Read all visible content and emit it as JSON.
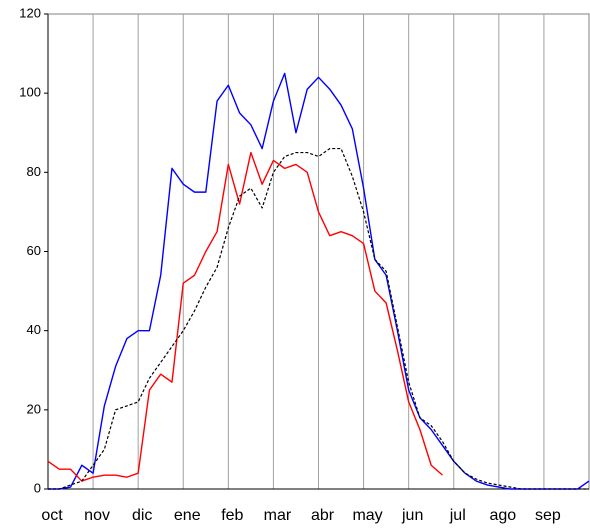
{
  "chart_data": {
    "type": "line",
    "x": [
      0,
      0.25,
      0.5,
      0.75,
      1,
      1.25,
      1.5,
      1.75,
      2,
      2.25,
      2.5,
      2.75,
      3,
      3.25,
      3.5,
      3.75,
      4,
      4.25,
      4.5,
      4.75,
      5,
      5.25,
      5.5,
      5.75,
      6,
      6.25,
      6.5,
      6.75,
      7,
      7.25,
      7.5,
      7.75,
      8,
      8.25,
      8.5,
      8.75,
      9,
      9.25,
      9.5,
      9.75,
      10,
      10.25,
      10.5,
      10.75,
      11,
      11.25,
      11.5,
      11.75,
      12
    ],
    "series": [
      {
        "color": "#0000ff",
        "dash": false,
        "values": [
          0,
          0,
          0.5,
          6,
          4,
          21,
          31,
          38,
          40,
          40,
          54,
          81,
          77,
          75,
          75,
          98,
          102,
          95,
          92,
          86,
          98,
          105,
          90,
          101,
          104,
          101,
          97,
          91,
          76,
          58,
          54,
          40,
          25,
          18,
          15,
          11,
          7,
          4,
          2,
          1,
          0.5,
          0,
          0,
          0,
          0,
          0,
          0,
          0,
          2
        ]
      },
      {
        "color": "#ff0000",
        "dash": false,
        "values": [
          7,
          5,
          5,
          2,
          3,
          3.5,
          3.5,
          3,
          4,
          25,
          29,
          27,
          52,
          54,
          60,
          65,
          82,
          72,
          85,
          77,
          83,
          81,
          82,
          80,
          70,
          64,
          65,
          64,
          62,
          50,
          47,
          35,
          22,
          15,
          6,
          3.5,
          null,
          null,
          null,
          null,
          null,
          null,
          null,
          null,
          null,
          null,
          null,
          null,
          null
        ]
      },
      {
        "color": "#000000",
        "dash": true,
        "values": [
          0,
          0,
          1,
          2,
          6,
          10,
          20,
          21,
          22,
          28,
          32,
          36,
          40,
          45,
          51,
          56,
          66,
          74,
          76,
          71,
          80,
          84,
          85,
          85,
          84,
          86,
          86,
          79,
          70,
          58,
          55,
          41,
          27,
          18,
          16,
          12,
          7,
          4,
          2.5,
          1.5,
          1,
          0.5,
          0,
          0,
          0,
          0,
          0,
          0,
          0
        ]
      }
    ],
    "xlim": [
      0,
      12
    ],
    "xticks": [
      {
        "value": 0,
        "label": "oct"
      },
      {
        "value": 1,
        "label": "nov"
      },
      {
        "value": 2,
        "label": "dic"
      },
      {
        "value": 3,
        "label": "ene"
      },
      {
        "value": 4,
        "label": "feb"
      },
      {
        "value": 5,
        "label": "mar"
      },
      {
        "value": 6,
        "label": "abr"
      },
      {
        "value": 7,
        "label": "may"
      },
      {
        "value": 8,
        "label": "jun"
      },
      {
        "value": 9,
        "label": "jul"
      },
      {
        "value": 10,
        "label": "ago"
      },
      {
        "value": 11,
        "label": "sep"
      }
    ],
    "ylim": [
      0,
      120
    ],
    "yticks": [
      0,
      20,
      40,
      60,
      80,
      100,
      120
    ],
    "grid": "x"
  }
}
